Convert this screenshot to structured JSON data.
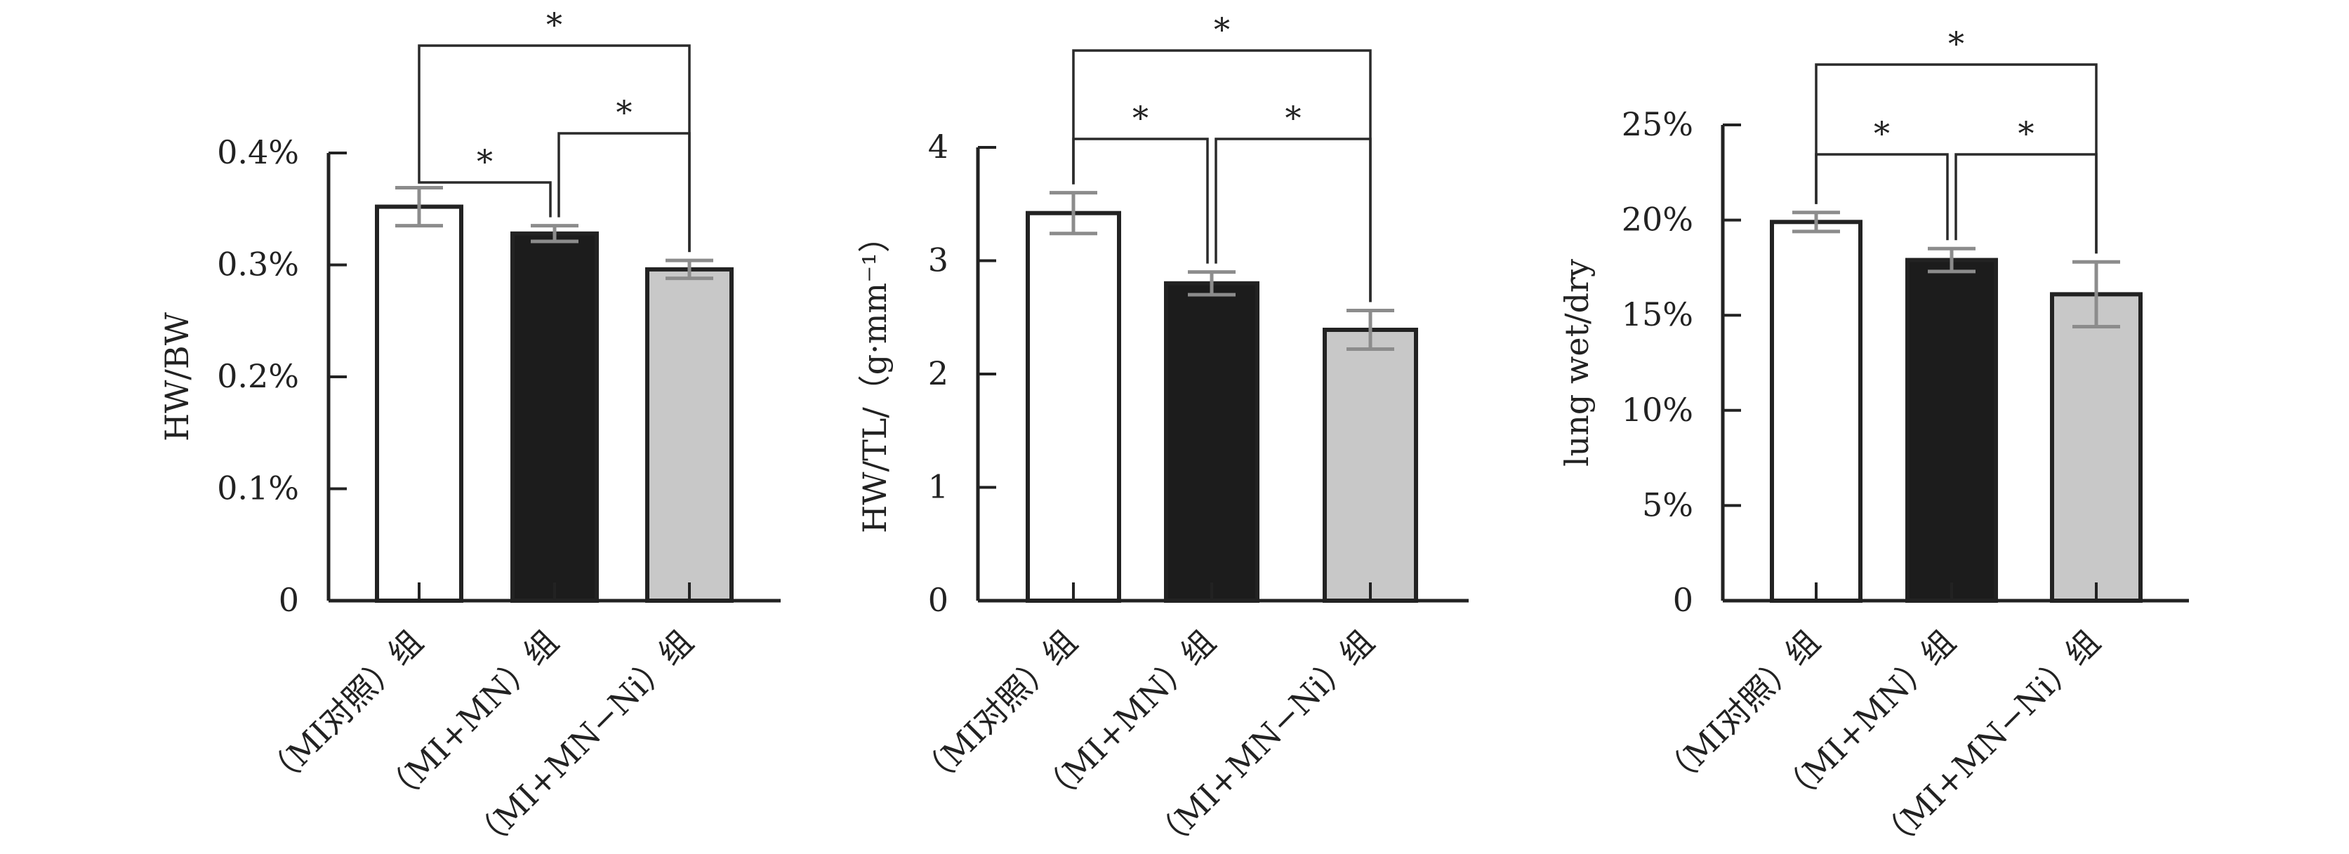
{
  "colors": {
    "axis": "#222222",
    "bar_outline": "#222222",
    "error_bar": "#8c8c8c",
    "bracket": "#2a2a2a"
  },
  "chart_data": [
    {
      "type": "bar",
      "ylabel": "HW/BW",
      "ylim": [
        0,
        0.4
      ],
      "yticks": [
        0,
        0.1,
        0.2,
        0.3,
        0.4
      ],
      "ytick_labels": [
        "0",
        "0.1%",
        "0.2%",
        "0.3%",
        "0.4%"
      ],
      "categories": [
        "（MI对照）组",
        "（MI+MN）组",
        "（MI+MN−Ni）组"
      ],
      "values": [
        0.352,
        0.328,
        0.296
      ],
      "errors": [
        0.017,
        0.007,
        0.008
      ],
      "bar_colors": [
        "#ffffff",
        "#1c1c1c",
        "#c8c8c8"
      ],
      "significance": [
        {
          "from": 0,
          "to": 1,
          "label": "*"
        },
        {
          "from": 1,
          "to": 2,
          "label": "*"
        },
        {
          "from": 0,
          "to": 2,
          "label": "*"
        }
      ]
    },
    {
      "type": "bar",
      "ylabel": "HW/TL/（g·mm⁻¹）",
      "ylim": [
        0,
        4
      ],
      "yticks": [
        0,
        1,
        2,
        3,
        4
      ],
      "ytick_labels": [
        "0",
        "1",
        "2",
        "3",
        "4"
      ],
      "categories": [
        "（MI对照）组",
        "（MI+MN）组",
        "（MI+MN−Ni）组"
      ],
      "values": [
        3.42,
        2.8,
        2.39
      ],
      "errors": [
        0.18,
        0.1,
        0.17
      ],
      "bar_colors": [
        "#ffffff",
        "#1c1c1c",
        "#c8c8c8"
      ],
      "significance": [
        {
          "from": 0,
          "to": 1,
          "label": "*"
        },
        {
          "from": 1,
          "to": 2,
          "label": "*"
        },
        {
          "from": 0,
          "to": 2,
          "label": "*"
        }
      ]
    },
    {
      "type": "bar",
      "ylabel": "lung wet/dry",
      "ylim": [
        0,
        0.25
      ],
      "yticks": [
        0,
        0.05,
        0.1,
        0.15,
        0.2,
        0.25
      ],
      "ytick_labels": [
        "0",
        "5%",
        "10%",
        "15%",
        "20%",
        "25%"
      ],
      "categories": [
        "（MI对照）组",
        "（MI+MN）组",
        "（MI+MN−Ni）组"
      ],
      "values": [
        0.199,
        0.179,
        0.161
      ],
      "errors": [
        0.005,
        0.006,
        0.017
      ],
      "bar_colors": [
        "#ffffff",
        "#1c1c1c",
        "#c8c8c8"
      ],
      "significance": [
        {
          "from": 0,
          "to": 1,
          "label": "*"
        },
        {
          "from": 1,
          "to": 2,
          "label": "*"
        },
        {
          "from": 0,
          "to": 2,
          "label": "*"
        }
      ]
    }
  ]
}
